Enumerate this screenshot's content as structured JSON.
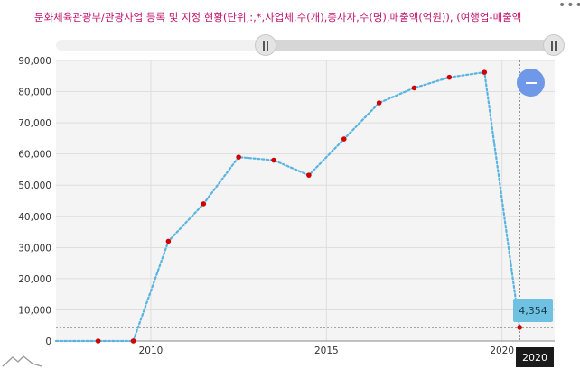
{
  "header": {
    "title": "문화체육관광부/관광사업 등록 및 지정 현황(단위,:,*,사업체,수(개),종사자,수(명),매출액(억원)), (여행업-매출액",
    "menu_icon": "more-horizontal-icon"
  },
  "range_slider": {
    "start": 0.42,
    "end": 1.0
  },
  "chart_data": {
    "type": "line",
    "title": "문화체육관광부/관광사업 등록 및 지정 현황(단위,:,*,사업체,수(개),종사자,수(명),매출액(억원)), (여행업-매출액",
    "x": [
      2008.5,
      2009.5,
      2010.5,
      2011.5,
      2012.5,
      2013.5,
      2014.5,
      2015.5,
      2016.5,
      2017.5,
      2018.5,
      2019.5,
      2020.5
    ],
    "series": [
      {
        "values": [
          0,
          0,
          32000,
          44000,
          59000,
          58000,
          53200,
          64800,
          76400,
          81200,
          84600,
          86200,
          4354
        ]
      }
    ],
    "xlim": [
      2007.3,
      2021.5
    ],
    "ylim": [
      0,
      90000
    ],
    "y_ticks": [
      "0",
      "10,000",
      "20,000",
      "30,000",
      "40,000",
      "50,000",
      "60,000",
      "70,000",
      "80,000",
      "90,000"
    ],
    "x_ticks": [
      {
        "value": 2010,
        "label": "2010"
      },
      {
        "value": 2015,
        "label": "2015"
      },
      {
        "value": 2020,
        "label": "2020"
      }
    ],
    "grid": true,
    "line_color": "#5ab4e0",
    "point_color": "#d00000"
  },
  "tooltip": {
    "value_label": "4,354",
    "x_label": "2020"
  },
  "colors": {
    "title": "#c0146e",
    "zoom_button": "#6f98e8",
    "tooltip_bg": "#6ec1e0"
  },
  "controls": {
    "zoom_icon": "zoom-out-icon",
    "logo_icon": "mountain-logo-icon"
  }
}
